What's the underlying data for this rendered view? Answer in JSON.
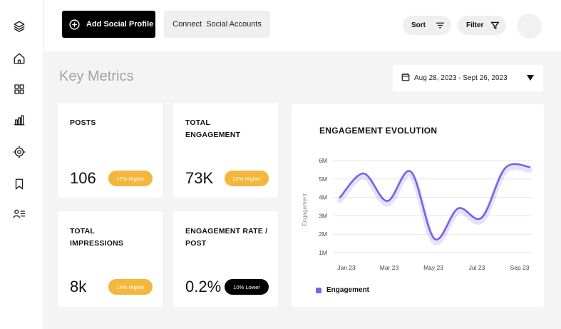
{
  "sidebar": {
    "items": [
      {
        "icon": "layers-icon"
      },
      {
        "icon": "home-icon"
      },
      {
        "icon": "grid-icon"
      },
      {
        "icon": "bar-chart-icon"
      },
      {
        "icon": "target-icon"
      },
      {
        "icon": "bookmark-icon"
      },
      {
        "icon": "user-list-icon"
      }
    ]
  },
  "topbar": {
    "add_profile_label": "Add Social Profile",
    "connect_label": "Connect  Social Accounts",
    "sort_label": "Sort",
    "filter_label": "Filter"
  },
  "main": {
    "title": "Key Metrics",
    "date_range": "Aug 28, 2023 - Sept 26, 2023"
  },
  "metrics": [
    {
      "label_line1": "POSTS",
      "label_line2": "",
      "value": "106",
      "badge": "17% Higher",
      "badge_type": "higher"
    },
    {
      "label_line1": "TOTAL",
      "label_line2": "ENGAGEMENT",
      "value": "73K",
      "badge": "22% Higher",
      "badge_type": "higher"
    },
    {
      "label_line1": "TOTAL",
      "label_line2": "IMPRESSIONS",
      "value": "8k",
      "badge": "14% Higher",
      "badge_type": "higher"
    },
    {
      "label_line1": "ENGAGEMENT RATE /",
      "label_line2": "POST",
      "value": "0.2%",
      "badge": "10% Lower",
      "badge_type": "lower"
    }
  ],
  "colors": {
    "accent": "#7b61e8",
    "badge_higher": "#f4b73d",
    "badge_lower": "#000000"
  },
  "chart_data": {
    "type": "line",
    "title": "ENGAGEMENT EVOLUTION",
    "xlabel": "",
    "ylabel": "Engagement",
    "y_ticks": [
      "1M",
      "2M",
      "3M",
      "4M",
      "5M",
      "6M"
    ],
    "x_ticks": [
      "Jan 23",
      "Mar 23",
      "May 23",
      "Jul 23",
      "Sep 23"
    ],
    "ylim": [
      1,
      6
    ],
    "grid": true,
    "legend_position": "bottom-left",
    "series": [
      {
        "name": "Engagement",
        "x": [
          0,
          1,
          2,
          3,
          4,
          5,
          6,
          7,
          8
        ],
        "values": [
          4.0,
          5.3,
          3.8,
          5.4,
          1.75,
          3.4,
          2.9,
          5.6,
          5.65
        ]
      }
    ]
  }
}
